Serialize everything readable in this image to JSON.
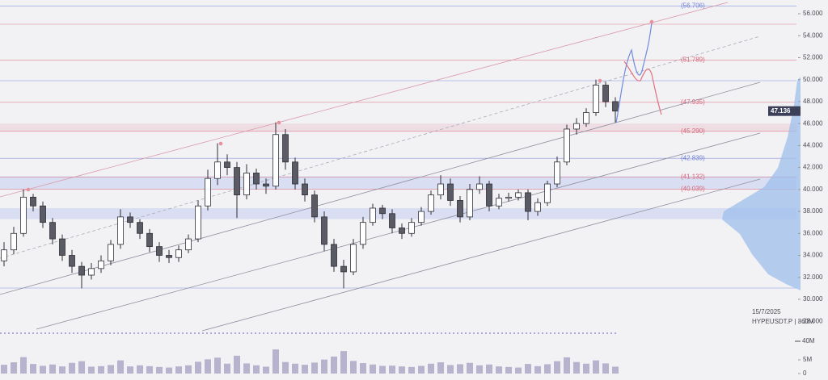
{
  "chart_data": {
    "type": "candlestick",
    "date": "15/7/2025",
    "symbol_tag": "HYPEUSDT.P | 360M",
    "series": {
      "up_color": "#ffffff",
      "down_color": "#5b5b66",
      "stroke": "#2e2e38",
      "open": [
        33500,
        34500,
        36000,
        39300,
        38500,
        37000,
        35500,
        34000,
        33000,
        32200,
        32800,
        33500,
        35000,
        37500,
        37000,
        36000,
        34800,
        34000,
        33800,
        34500,
        35500,
        38500,
        41000,
        42500,
        42000,
        39500,
        41500,
        40500,
        40300,
        45000,
        42500,
        40500,
        39500,
        37500,
        35000,
        33000,
        32500,
        35000,
        37000,
        38300,
        37800,
        36500,
        36000,
        37000,
        38000,
        39500,
        40500,
        39000,
        37500,
        40000,
        40500,
        38500,
        39200,
        39300,
        39700,
        38000,
        38800,
        40500,
        42500,
        45500,
        46000,
        47000,
        49500,
        48000
      ],
      "high": [
        35200,
        36600,
        40000,
        39600,
        38900,
        37400,
        35900,
        34500,
        33400,
        33300,
        34000,
        35400,
        38200,
        37900,
        37300,
        36400,
        35200,
        34500,
        34900,
        35900,
        39000,
        41800,
        44200,
        43200,
        42500,
        42300,
        41900,
        41000,
        46100,
        45500,
        42900,
        41000,
        39900,
        38000,
        35500,
        33600,
        35500,
        37500,
        38700,
        38600,
        38200,
        36900,
        37400,
        38400,
        39900,
        41300,
        41000,
        39400,
        40500,
        41200,
        40800,
        39600,
        39700,
        40000,
        40000,
        39200,
        40800,
        43000,
        45900,
        46500,
        47400,
        50000,
        49800,
        48400
      ],
      "low": [
        33000,
        34100,
        35700,
        38000,
        36500,
        35000,
        33500,
        32400,
        31000,
        31800,
        32400,
        33100,
        34600,
        36500,
        35500,
        34300,
        33400,
        33300,
        33400,
        34200,
        35200,
        38100,
        40400,
        41300,
        37400,
        39100,
        40000,
        39600,
        40000,
        41800,
        40000,
        38900,
        37000,
        34400,
        32500,
        31000,
        32200,
        34600,
        36700,
        37300,
        36000,
        35500,
        35700,
        36700,
        37700,
        39100,
        38500,
        37000,
        37200,
        39600,
        38000,
        38200,
        38900,
        39000,
        37200,
        37600,
        38500,
        40200,
        42200,
        45000,
        45700,
        46700,
        47500,
        46100
      ],
      "close": [
        34500,
        36000,
        39300,
        38500,
        37000,
        35500,
        34000,
        33000,
        32200,
        32800,
        33500,
        35000,
        37500,
        37000,
        36000,
        34800,
        34000,
        33800,
        34500,
        35500,
        38500,
        41000,
        42500,
        42000,
        39500,
        41500,
        40500,
        40300,
        45000,
        42500,
        40500,
        39500,
        37500,
        35000,
        33000,
        32500,
        35000,
        37000,
        38300,
        37800,
        36500,
        36000,
        37000,
        38000,
        39500,
        40500,
        39000,
        37500,
        40000,
        40500,
        38500,
        39200,
        39300,
        39700,
        38000,
        38800,
        40500,
        42500,
        45500,
        46000,
        47000,
        49500,
        48000,
        47136
      ]
    },
    "ylim": [
      27500,
      57250
    ],
    "yticks": [
      {
        "value": 28000,
        "label": "28.000"
      },
      {
        "value": 30000,
        "label": "30.000"
      },
      {
        "value": 32000,
        "label": "32.000"
      },
      {
        "value": 34000,
        "label": "34.000"
      },
      {
        "value": 36000,
        "label": "36.000"
      },
      {
        "value": 38000,
        "label": "38.000"
      },
      {
        "value": 40000,
        "label": "40.000"
      },
      {
        "value": 42000,
        "label": "42.000"
      },
      {
        "value": 44000,
        "label": "44.000"
      },
      {
        "value": 46000,
        "label": "46.000"
      },
      {
        "value": 48000,
        "label": "48.000"
      },
      {
        "value": 50000,
        "label": "50.000"
      },
      {
        "value": 52000,
        "label": "52.000"
      },
      {
        "value": 54000,
        "label": "54.000"
      },
      {
        "value": 56000,
        "label": "56.000"
      }
    ],
    "price_label": {
      "value": 47136,
      "label": "47.136"
    },
    "levels": [
      {
        "value": 56706,
        "label": "(56.706)",
        "color": "#6f7fd6"
      },
      {
        "value": 51789,
        "label": "(51.789)",
        "color": "#d9667a"
      },
      {
        "value": 47935,
        "label": "(47.935)",
        "color": "#d9667a"
      },
      {
        "value": 45290,
        "label": "(45.290)",
        "color": "#d9667a"
      },
      {
        "value": 42839,
        "label": "(42.839)",
        "color": "#6f7fd6"
      },
      {
        "value": 41132,
        "label": "(41.132)",
        "color": "#d9667a"
      },
      {
        "value": 40039,
        "label": "(40.039)",
        "color": "#d9667a"
      }
    ],
    "zones": [
      {
        "from": 45300,
        "to": 46000,
        "color": "#eedde3"
      },
      {
        "from": 40000,
        "to": 41200,
        "color": "#d9def2"
      },
      {
        "from": 37300,
        "to": 38300,
        "color": "#d9def2"
      }
    ],
    "volume": {
      "color": "#b7b3cf",
      "ylim": [
        0,
        10000000
      ],
      "yticks": [
        0,
        {
          "value": 5000000,
          "label": "5M"
        }
      ],
      "values": [
        3200000,
        4100000,
        6000000,
        3500000,
        2800000,
        3300000,
        2600000,
        3900000,
        4500000,
        2500000,
        2700000,
        3100000,
        4800000,
        2600000,
        3000000,
        2700000,
        2400000,
        2200000,
        2600000,
        3000000,
        4300000,
        5200000,
        5800000,
        3600000,
        6500000,
        3700000,
        3000000,
        2500000,
        8800000,
        4200000,
        3600000,
        3200000,
        4000000,
        5100000,
        6200000,
        8200000,
        4600000,
        3800000,
        3300000,
        2800000,
        2900000,
        2600000,
        2400000,
        2800000,
        3600000,
        4100000,
        3100000,
        3400000,
        3900000,
        3000000,
        3300000,
        2600000,
        2400000,
        2200000,
        3500000,
        2700000,
        3400000,
        4500000,
        5900000,
        4200000,
        3600000,
        4800000,
        3700000,
        2500000
      ]
    },
    "indicator_label": "40M"
  }
}
